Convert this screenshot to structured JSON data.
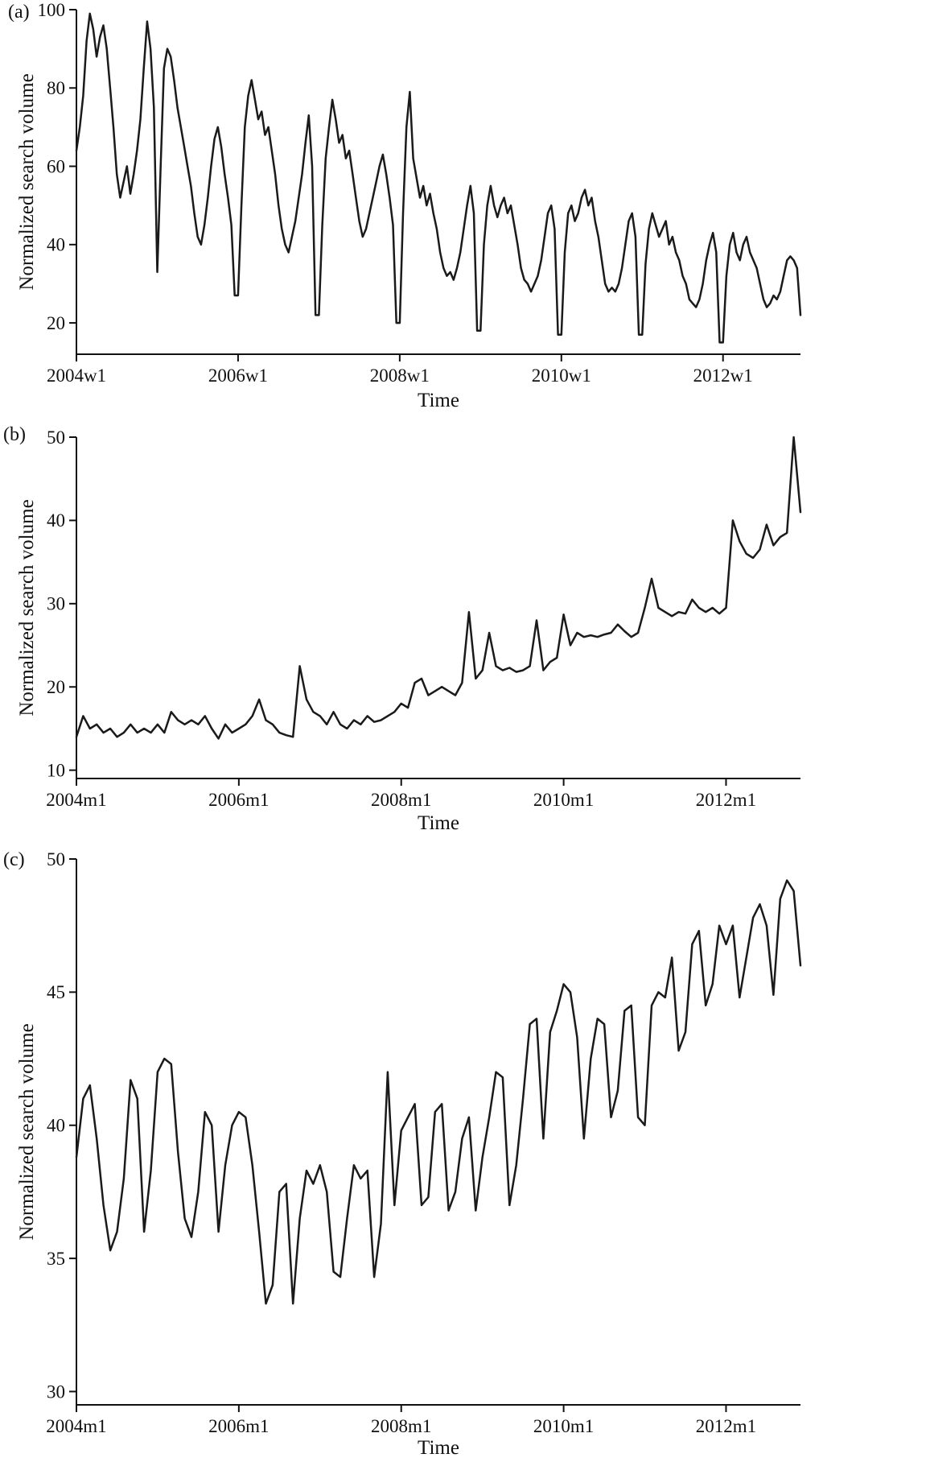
{
  "panels": [
    {
      "label": "(a)",
      "ylabel": "Normalized search volume",
      "xlabel": "Time"
    },
    {
      "label": "(b)",
      "ylabel": "Normalized search volume",
      "xlabel": "Time"
    },
    {
      "label": "(c)",
      "ylabel": "Normalized search volume",
      "xlabel": "Time"
    }
  ],
  "line_color": "#1a1a1a",
  "chart_data": [
    {
      "type": "line",
      "panel": "(a)",
      "xlabel": "Time",
      "ylabel": "Normalized search volume",
      "x_start": "2004w1",
      "points_per_year": 24,
      "xticks": {
        "labels": [
          "2004w1",
          "2006w1",
          "2008w1",
          "2010w1",
          "2012w1"
        ],
        "indices": [
          0,
          48,
          96,
          144,
          192
        ]
      },
      "yticks": [
        20,
        40,
        60,
        80,
        100
      ],
      "ylim": [
        12,
        100
      ],
      "grid": false,
      "legend": "none",
      "values": [
        64,
        70,
        78,
        92,
        99,
        95,
        88,
        93,
        96,
        90,
        80,
        70,
        58,
        52,
        56,
        60,
        53,
        58,
        64,
        72,
        85,
        97,
        90,
        75,
        33,
        60,
        85,
        90,
        88,
        82,
        75,
        70,
        65,
        60,
        55,
        48,
        42,
        40,
        45,
        52,
        60,
        67,
        70,
        65,
        58,
        52,
        45,
        27,
        27,
        50,
        70,
        78,
        82,
        77,
        72,
        74,
        68,
        70,
        64,
        58,
        50,
        44,
        40,
        38,
        42,
        46,
        52,
        58,
        66,
        73,
        60,
        22,
        22,
        45,
        62,
        70,
        77,
        72,
        66,
        68,
        62,
        64,
        58,
        52,
        46,
        42,
        44,
        48,
        52,
        56,
        60,
        63,
        58,
        52,
        45,
        20,
        20,
        48,
        70,
        79,
        62,
        57,
        52,
        55,
        50,
        53,
        48,
        44,
        38,
        34,
        32,
        33,
        31,
        34,
        38,
        44,
        50,
        55,
        48,
        18,
        18,
        40,
        50,
        55,
        50,
        47,
        50,
        52,
        48,
        50,
        45,
        40,
        34,
        31,
        30,
        28,
        30,
        32,
        36,
        42,
        48,
        50,
        44,
        17,
        17,
        38,
        48,
        50,
        46,
        48,
        52,
        54,
        50,
        52,
        46,
        42,
        36,
        30,
        28,
        29,
        28,
        30,
        34,
        40,
        46,
        48,
        42,
        17,
        17,
        35,
        44,
        48,
        45,
        42,
        44,
        46,
        40,
        42,
        38,
        36,
        32,
        30,
        26,
        25,
        24,
        26,
        30,
        36,
        40,
        43,
        38,
        15,
        15,
        32,
        40,
        43,
        38,
        36,
        40,
        42,
        38,
        36,
        34,
        30,
        26,
        24,
        25,
        27,
        26,
        28,
        32,
        36,
        37,
        36,
        34,
        22
      ]
    },
    {
      "type": "line",
      "panel": "(b)",
      "xlabel": "Time",
      "ylabel": "Normalized search volume",
      "x_start": "2004m1",
      "points_per_year": 12,
      "xticks": {
        "labels": [
          "2004m1",
          "2006m1",
          "2008m1",
          "2010m1",
          "2012m1"
        ],
        "indices": [
          0,
          24,
          48,
          72,
          96
        ]
      },
      "yticks": [
        10,
        20,
        30,
        40,
        50
      ],
      "ylim": [
        9,
        50
      ],
      "grid": false,
      "legend": "none",
      "values": [
        14,
        16.5,
        15,
        15.5,
        14.5,
        15,
        14,
        14.5,
        15.5,
        14.5,
        15,
        14.5,
        15.5,
        14.5,
        17,
        16,
        15.5,
        16,
        15.5,
        16.5,
        15,
        13.8,
        15.5,
        14.5,
        15,
        15.5,
        16.5,
        18.5,
        16,
        15.5,
        14.5,
        14.2,
        14,
        22.5,
        18.5,
        17,
        16.5,
        15.5,
        17,
        15.5,
        15,
        16,
        15.5,
        16.5,
        15.8,
        16,
        16.5,
        17,
        18,
        17.5,
        20.5,
        21,
        19,
        19.5,
        20,
        19.5,
        19,
        20.5,
        29,
        21,
        22,
        26.5,
        22.5,
        22,
        22.3,
        21.8,
        22,
        22.5,
        28,
        22,
        23,
        23.5,
        28.7,
        25,
        26.5,
        26,
        26.2,
        26,
        26.3,
        26.5,
        27.5,
        26.7,
        26,
        26.5,
        29.5,
        33,
        29.5,
        29,
        28.5,
        29,
        28.8,
        30.5,
        29.5,
        29,
        29.5,
        28.8,
        29.5,
        40,
        37.5,
        36,
        35.5,
        36.5,
        39.5,
        37,
        38,
        38.5,
        50,
        41
      ]
    },
    {
      "type": "line",
      "panel": "(c)",
      "xlabel": "Time",
      "ylabel": "Normalized search volume",
      "x_start": "2004m1",
      "points_per_year": 12,
      "xticks": {
        "labels": [
          "2004m1",
          "2006m1",
          "2008m1",
          "2010m1",
          "2012m1"
        ],
        "indices": [
          0,
          24,
          48,
          72,
          96
        ]
      },
      "yticks": [
        30,
        35,
        40,
        45,
        50
      ],
      "ylim": [
        29.5,
        50
      ],
      "grid": false,
      "legend": "none",
      "values": [
        38.8,
        41,
        41.5,
        39.5,
        37,
        35.3,
        36,
        38,
        41.7,
        41,
        36,
        38.3,
        42,
        42.5,
        42.3,
        39,
        36.5,
        35.8,
        37.5,
        40.5,
        40,
        36,
        38.5,
        40,
        40.5,
        40.3,
        38.5,
        36,
        33.3,
        34,
        37.5,
        37.8,
        33.3,
        36.5,
        38.3,
        37.8,
        38.5,
        37.5,
        34.5,
        34.3,
        36.5,
        38.5,
        38,
        38.3,
        34.3,
        36.3,
        42,
        37,
        39.8,
        40.3,
        40.8,
        37,
        37.3,
        40.5,
        40.8,
        36.8,
        37.5,
        39.5,
        40.3,
        36.8,
        38.8,
        40.3,
        42,
        41.8,
        37,
        38.5,
        41,
        43.8,
        44,
        39.5,
        43.5,
        44.3,
        45.3,
        45,
        43.3,
        39.5,
        42.5,
        44,
        43.8,
        40.3,
        41.3,
        44.3,
        44.5,
        40.3,
        40,
        44.5,
        45,
        44.8,
        46.3,
        42.8,
        43.5,
        46.8,
        47.3,
        44.5,
        45.3,
        47.5,
        46.8,
        47.5,
        44.8,
        46.3,
        47.8,
        48.3,
        47.5,
        44.9,
        48.5,
        49.2,
        48.8,
        46
      ]
    }
  ]
}
